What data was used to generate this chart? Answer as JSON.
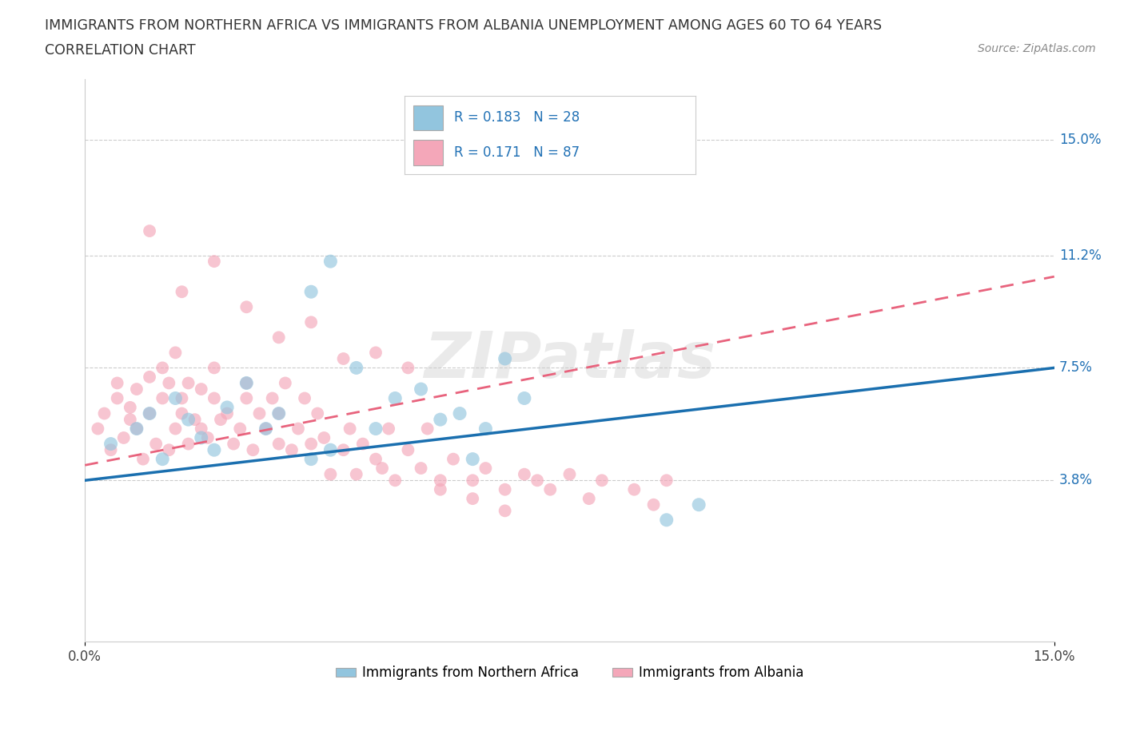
{
  "title_line1": "IMMIGRANTS FROM NORTHERN AFRICA VS IMMIGRANTS FROM ALBANIA UNEMPLOYMENT AMONG AGES 60 TO 64 YEARS",
  "title_line2": "CORRELATION CHART",
  "source_text": "Source: ZipAtlas.com",
  "ylabel": "Unemployment Among Ages 60 to 64 years",
  "xlim": [
    0.0,
    0.15
  ],
  "ylim": [
    -0.015,
    0.17
  ],
  "ytick_vals": [
    0.038,
    0.075,
    0.112,
    0.15
  ],
  "ytick_labels": [
    "3.8%",
    "7.5%",
    "11.2%",
    "15.0%"
  ],
  "legend_label1": "Immigrants from Northern Africa",
  "legend_label2": "Immigrants from Albania",
  "r1": 0.183,
  "n1": 28,
  "r2": 0.171,
  "n2": 87,
  "color_blue": "#92c5de",
  "color_pink": "#f4a7b9",
  "color_blue_line": "#1a6faf",
  "color_pink_line": "#e8637d",
  "blue_line_start_y": 0.038,
  "blue_line_end_y": 0.075,
  "pink_line_start_y": 0.043,
  "pink_line_end_y": 0.105,
  "blue_scatter_x": [
    0.004,
    0.008,
    0.01,
    0.012,
    0.014,
    0.016,
    0.018,
    0.02,
    0.022,
    0.025,
    0.028,
    0.03,
    0.035,
    0.038,
    0.042,
    0.048,
    0.052,
    0.058,
    0.062,
    0.068,
    0.035,
    0.045,
    0.055,
    0.065,
    0.09,
    0.095,
    0.06,
    0.038
  ],
  "blue_scatter_y": [
    0.05,
    0.055,
    0.06,
    0.045,
    0.065,
    0.058,
    0.052,
    0.048,
    0.062,
    0.07,
    0.055,
    0.06,
    0.1,
    0.048,
    0.075,
    0.065,
    0.068,
    0.06,
    0.055,
    0.065,
    0.045,
    0.055,
    0.058,
    0.078,
    0.025,
    0.03,
    0.045,
    0.11
  ],
  "pink_scatter_x": [
    0.002,
    0.003,
    0.004,
    0.005,
    0.005,
    0.006,
    0.007,
    0.007,
    0.008,
    0.008,
    0.009,
    0.01,
    0.01,
    0.011,
    0.012,
    0.012,
    0.013,
    0.013,
    0.014,
    0.014,
    0.015,
    0.015,
    0.016,
    0.016,
    0.017,
    0.018,
    0.018,
    0.019,
    0.02,
    0.02,
    0.021,
    0.022,
    0.023,
    0.024,
    0.025,
    0.025,
    0.026,
    0.027,
    0.028,
    0.029,
    0.03,
    0.03,
    0.031,
    0.032,
    0.033,
    0.034,
    0.035,
    0.036,
    0.037,
    0.038,
    0.04,
    0.041,
    0.042,
    0.043,
    0.045,
    0.046,
    0.047,
    0.048,
    0.05,
    0.052,
    0.053,
    0.055,
    0.057,
    0.06,
    0.062,
    0.065,
    0.068,
    0.07,
    0.072,
    0.075,
    0.078,
    0.08,
    0.085,
    0.088,
    0.09,
    0.01,
    0.015,
    0.02,
    0.025,
    0.03,
    0.035,
    0.04,
    0.045,
    0.05,
    0.055,
    0.06,
    0.065
  ],
  "pink_scatter_y": [
    0.055,
    0.06,
    0.048,
    0.065,
    0.07,
    0.052,
    0.058,
    0.062,
    0.055,
    0.068,
    0.045,
    0.06,
    0.072,
    0.05,
    0.065,
    0.075,
    0.048,
    0.07,
    0.055,
    0.08,
    0.06,
    0.065,
    0.05,
    0.07,
    0.058,
    0.055,
    0.068,
    0.052,
    0.065,
    0.075,
    0.058,
    0.06,
    0.05,
    0.055,
    0.065,
    0.07,
    0.048,
    0.06,
    0.055,
    0.065,
    0.05,
    0.06,
    0.07,
    0.048,
    0.055,
    0.065,
    0.05,
    0.06,
    0.052,
    0.04,
    0.048,
    0.055,
    0.04,
    0.05,
    0.045,
    0.042,
    0.055,
    0.038,
    0.048,
    0.042,
    0.055,
    0.038,
    0.045,
    0.038,
    0.042,
    0.035,
    0.04,
    0.038,
    0.035,
    0.04,
    0.032,
    0.038,
    0.035,
    0.03,
    0.038,
    0.12,
    0.1,
    0.11,
    0.095,
    0.085,
    0.09,
    0.078,
    0.08,
    0.075,
    0.035,
    0.032,
    0.028
  ]
}
